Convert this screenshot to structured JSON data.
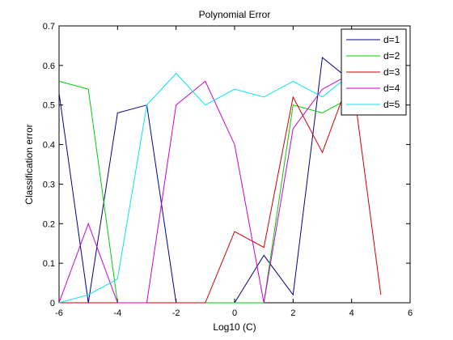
{
  "chart_data": {
    "type": "line",
    "title": "Polynomial Error",
    "xlabel": "Log10 (C)",
    "ylabel": "Classification error",
    "xlim": [
      -6,
      6
    ],
    "ylim": [
      0,
      0.7
    ],
    "xticks": [
      "-6",
      "-4",
      "-2",
      "0",
      "2",
      "4",
      "6"
    ],
    "yticks": [
      "0",
      "0.1",
      "0.2",
      "0.3",
      "0.4",
      "0.5",
      "0.6",
      "0.7"
    ],
    "grid": false,
    "legend_position": "top-right",
    "x": [
      -6,
      -5,
      -4,
      -3,
      -2,
      -1,
      0,
      1,
      2,
      3,
      4,
      5
    ],
    "series": [
      {
        "name": "d=1",
        "color": "#00008b",
        "values": [
          0.53,
          0.0,
          0.48,
          0.5,
          0.0,
          0.0,
          0.0,
          0.12,
          0.02,
          0.62,
          0.56,
          null
        ]
      },
      {
        "name": "d=2",
        "color": "#00cc00",
        "values": [
          0.56,
          0.54,
          0.0,
          0.0,
          0.0,
          0.0,
          0.0,
          0.0,
          0.5,
          0.48,
          0.52,
          null
        ]
      },
      {
        "name": "d=3",
        "color": "#cc0000",
        "values": [
          0.0,
          0.0,
          0.0,
          0.0,
          0.0,
          0.0,
          0.18,
          0.14,
          0.52,
          0.38,
          0.58,
          0.02
        ]
      },
      {
        "name": "d=4",
        "color": "#cc00cc",
        "values": [
          0.0,
          0.2,
          0.0,
          0.0,
          0.5,
          0.56,
          0.4,
          0.0,
          0.44,
          0.54,
          0.58,
          null
        ]
      },
      {
        "name": "d=5",
        "color": "#00e5ee",
        "values": [
          0.0,
          0.02,
          0.06,
          0.5,
          0.58,
          0.5,
          0.54,
          0.52,
          0.56,
          0.52,
          0.58,
          null
        ]
      }
    ]
  }
}
